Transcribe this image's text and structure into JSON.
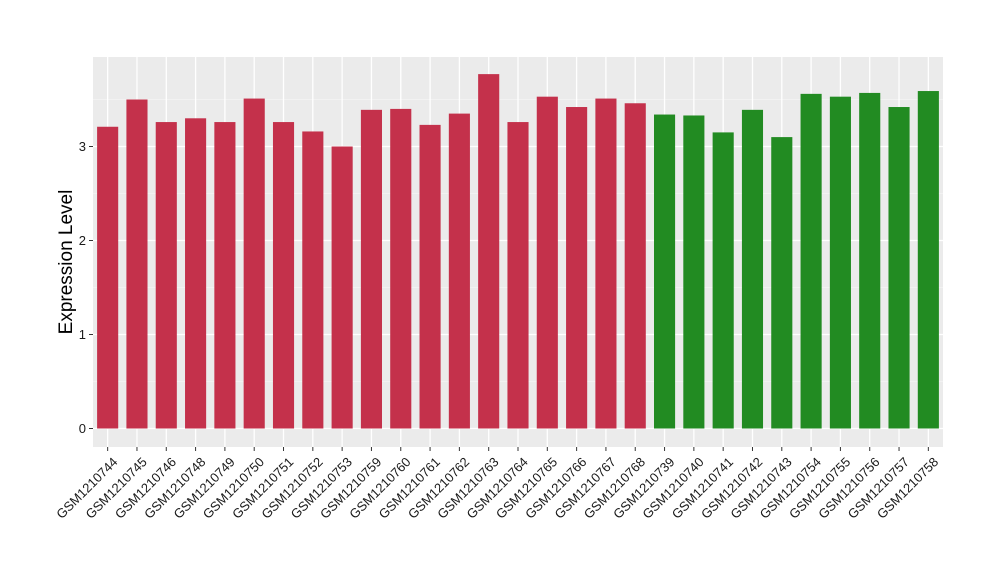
{
  "chart_data": {
    "type": "bar",
    "title": "",
    "xlabel": "",
    "ylabel": "Expression Level",
    "ylim": [
      0,
      3.9
    ],
    "yticks": [
      0,
      1,
      2,
      3
    ],
    "grid": true,
    "legend": "none",
    "categories": [
      "GSM1210744",
      "GSM1210745",
      "GSM1210746",
      "GSM1210748",
      "GSM1210749",
      "GSM1210750",
      "GSM1210751",
      "GSM1210752",
      "GSM1210753",
      "GSM1210759",
      "GSM1210760",
      "GSM1210761",
      "GSM1210762",
      "GSM1210763",
      "GSM1210764",
      "GSM1210765",
      "GSM1210766",
      "GSM1210767",
      "GSM1210768",
      "GSM1210739",
      "GSM1210740",
      "GSM1210741",
      "GSM1210742",
      "GSM1210743",
      "GSM1210754",
      "GSM1210755",
      "GSM1210756",
      "GSM1210757",
      "GSM1210758"
    ],
    "values": [
      3.21,
      3.5,
      3.26,
      3.3,
      3.26,
      3.51,
      3.26,
      3.16,
      3.0,
      3.39,
      3.4,
      3.23,
      3.35,
      3.77,
      3.26,
      3.53,
      3.42,
      3.51,
      3.46,
      3.34,
      3.33,
      3.15,
      3.39,
      3.1,
      3.56,
      3.53,
      3.57,
      3.42,
      3.59
    ],
    "group_of_bar": [
      0,
      0,
      0,
      0,
      0,
      0,
      0,
      0,
      0,
      0,
      0,
      0,
      0,
      0,
      0,
      0,
      0,
      0,
      0,
      1,
      1,
      1,
      1,
      1,
      1,
      1,
      1,
      1,
      1
    ],
    "group_colors": [
      "#c4314b",
      "#228b22"
    ]
  },
  "colors": {
    "panel_background": "#ebebeb",
    "grid_major": "#ffffff",
    "grid_minor": "#f5f5f5",
    "tick_mark": "#333333"
  }
}
